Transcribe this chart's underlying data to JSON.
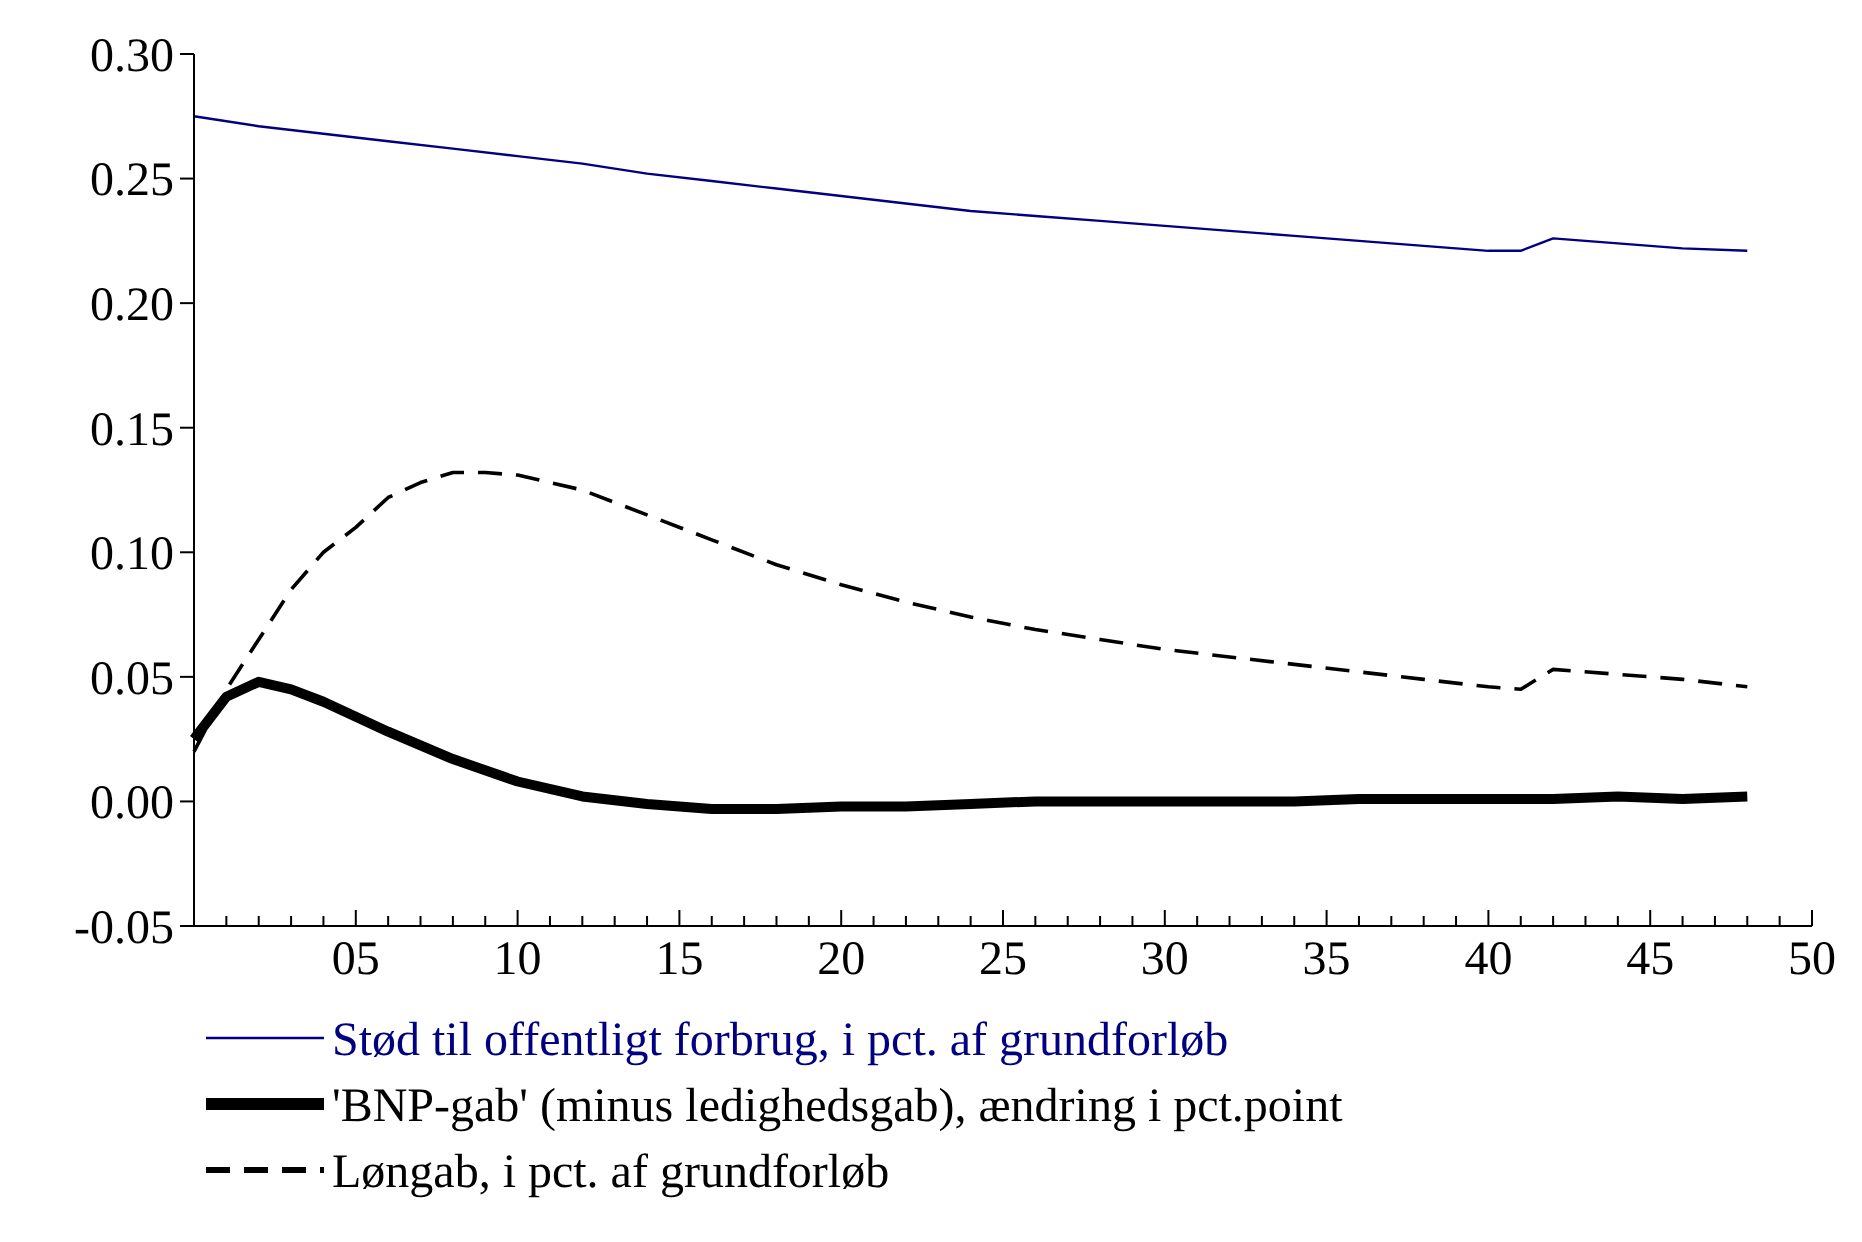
{
  "chart_data": {
    "type": "line",
    "legend": "bottom",
    "marker": "none",
    "grid": false,
    "xlim": [
      0,
      50
    ],
    "xticks": [
      {
        "value": 1,
        "label": null
      },
      {
        "value": 2,
        "label": null
      },
      {
        "value": 3,
        "label": null
      },
      {
        "value": 4,
        "label": null
      },
      {
        "value": 5,
        "label": "05"
      },
      {
        "value": 6,
        "label": null
      },
      {
        "value": 7,
        "label": null
      },
      {
        "value": 8,
        "label": null
      },
      {
        "value": 9,
        "label": null
      },
      10,
      {
        "value": 11,
        "label": null
      },
      {
        "value": 12,
        "label": null
      },
      {
        "value": 13,
        "label": null
      },
      {
        "value": 14,
        "label": null
      },
      15,
      {
        "value": 16,
        "label": null
      },
      {
        "value": 17,
        "label": null
      },
      {
        "value": 18,
        "label": null
      },
      {
        "value": 19,
        "label": null
      },
      20,
      {
        "value": 21,
        "label": null
      },
      {
        "value": 22,
        "label": null
      },
      {
        "value": 23,
        "label": null
      },
      {
        "value": 24,
        "label": null
      },
      25,
      {
        "value": 26,
        "label": null
      },
      {
        "value": 27,
        "label": null
      },
      {
        "value": 28,
        "label": null
      },
      {
        "value": 29,
        "label": null
      },
      30,
      {
        "value": 31,
        "label": null
      },
      {
        "value": 32,
        "label": null
      },
      {
        "value": 33,
        "label": null
      },
      {
        "value": 34,
        "label": null
      },
      35,
      {
        "value": 36,
        "label": null
      },
      {
        "value": 37,
        "label": null
      },
      {
        "value": 38,
        "label": null
      },
      {
        "value": 39,
        "label": null
      },
      40,
      {
        "value": 41,
        "label": null
      },
      {
        "value": 42,
        "label": null
      },
      {
        "value": 43,
        "label": null
      },
      {
        "value": 44,
        "label": null
      },
      45,
      {
        "value": 46,
        "label": null
      },
      {
        "value": 47,
        "label": null
      },
      {
        "value": 48,
        "label": null
      },
      {
        "value": 49,
        "label": null
      },
      50
    ],
    "ylim": [
      -0.05,
      0.3
    ],
    "yticks": [
      {
        "value": -0.05,
        "label": "-0.05"
      },
      {
        "value": 0,
        "label": "0.00"
      },
      {
        "value": 0.05,
        "label": "0.05"
      },
      {
        "value": 0.1,
        "label": "0.10"
      },
      {
        "value": 0.15,
        "label": "0.15"
      },
      {
        "value": 0.2,
        "label": "0.20"
      },
      {
        "value": 0.25,
        "label": "0.25"
      },
      {
        "value": 0.3,
        "label": "0.30"
      }
    ],
    "series": [
      {
        "name": "Stød til offentligt forbrug, i pct. af grundforløb",
        "color": "#000080",
        "line_style": "solid",
        "x": [
          0,
          2,
          4,
          6,
          8,
          10,
          12,
          14,
          16,
          18,
          20,
          22,
          24,
          26,
          28,
          30,
          32,
          34,
          36,
          38,
          40,
          41,
          42,
          44,
          46,
          48
        ],
        "values": [
          0.275,
          0.271,
          0.268,
          0.265,
          0.262,
          0.259,
          0.256,
          0.252,
          0.249,
          0.246,
          0.243,
          0.24,
          0.237,
          0.235,
          0.233,
          0.231,
          0.229,
          0.227,
          0.225,
          0.223,
          0.221,
          0.221,
          0.226,
          0.224,
          0.222,
          0.221
        ]
      },
      {
        "name": "'BNP-gab'  (minus ledighedsgab), ændring i pct.point",
        "color": "#000000",
        "line_style": "solid",
        "x": [
          0,
          1,
          2,
          3,
          4,
          6,
          8,
          10,
          12,
          14,
          16,
          18,
          20,
          22,
          24,
          26,
          28,
          30,
          32,
          34,
          36,
          38,
          40,
          42,
          44,
          46,
          48
        ],
        "values": [
          0.025,
          0.042,
          0.048,
          0.045,
          0.04,
          0.028,
          0.017,
          0.008,
          0.002,
          -0.001,
          -0.003,
          -0.003,
          -0.002,
          -0.002,
          -0.001,
          0,
          0,
          0,
          0,
          0,
          0.001,
          0.001,
          0.001,
          0.001,
          0.002,
          0.001,
          0.002
        ]
      },
      {
        "name": "Løngab, i pct. af grundforløb",
        "color": "#000000",
        "line_style": "dashed",
        "x": [
          0,
          1,
          2,
          3,
          4,
          5,
          6,
          7,
          8,
          9,
          10,
          12,
          14,
          16,
          18,
          20,
          22,
          24,
          26,
          28,
          30,
          32,
          34,
          36,
          38,
          40,
          41,
          42,
          44,
          46,
          48
        ],
        "values": [
          0.02,
          0.045,
          0.065,
          0.085,
          0.1,
          0.11,
          0.122,
          0.128,
          0.132,
          0.132,
          0.131,
          0.125,
          0.115,
          0.105,
          0.095,
          0.087,
          0.08,
          0.074,
          0.069,
          0.065,
          0.061,
          0.058,
          0.055,
          0.052,
          0.049,
          0.046,
          0.045,
          0.053,
          0.051,
          0.049,
          0.046
        ]
      }
    ]
  }
}
